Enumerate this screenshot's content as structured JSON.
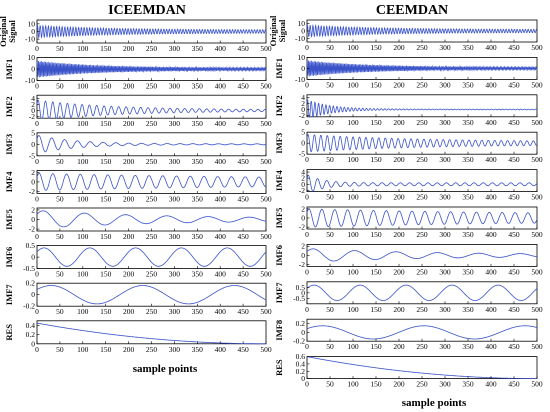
{
  "chart_data": [
    {
      "type": "line",
      "title": "ICEEMDAN",
      "xlabel": "sample points",
      "x_range": [
        0,
        500
      ],
      "x_ticks": [
        0,
        50,
        100,
        150,
        200,
        250,
        300,
        350,
        400,
        450,
        500
      ],
      "grid": false,
      "panels": [
        {
          "name": "Original Signal",
          "ylim": [
            -15,
            15
          ],
          "y_ticks": [
            -10,
            0,
            10
          ],
          "amp": 8,
          "decay": 0.006,
          "period": 6,
          "floor": 0.25,
          "trend": 0
        },
        {
          "name": "IMF1",
          "ylim": [
            -10,
            10
          ],
          "y_ticks": [
            -10,
            0,
            10
          ],
          "amp": 7.5,
          "decay": 0.008,
          "period": 3,
          "floor": 0.15,
          "trend": 0
        },
        {
          "name": "IMF2",
          "ylim": [
            -2.5,
            5
          ],
          "y_ticks": [
            -2,
            0,
            2,
            4
          ],
          "amp": 3.4,
          "decay": 0.006,
          "period": 16,
          "floor": 0.06,
          "trend": 0
        },
        {
          "name": "IMF3",
          "ylim": [
            -5,
            5
          ],
          "y_ticks": [
            -5,
            0,
            5
          ],
          "amp": 4,
          "decay": 0.012,
          "period": 28,
          "floor": 0.05,
          "trend": 0
        },
        {
          "name": "IMF4",
          "ylim": [
            -2.4,
            2.4
          ],
          "y_ticks": [
            -2,
            0,
            2
          ],
          "amp": 1.8,
          "decay": 0.002,
          "period": 30,
          "floor": 0.3,
          "trend": 0
        },
        {
          "name": "IMF5",
          "ylim": [
            -2.4,
            2.4
          ],
          "y_ticks": [
            -2,
            0,
            2
          ],
          "amp": 1.9,
          "decay": 0.004,
          "period": 90,
          "floor": 0.12,
          "trend": 0
        },
        {
          "name": "IMF6",
          "ylim": [
            -0.5,
            0.5
          ],
          "y_ticks": [
            -0.5,
            0,
            0.5
          ],
          "amp": 0.4,
          "decay": 0,
          "period": 100,
          "floor": 1,
          "trend": 0
        },
        {
          "name": "IMF7",
          "ylim": [
            -0.2,
            0.2
          ],
          "y_ticks": [
            -0.2,
            0,
            0.2
          ],
          "amp": 0.16,
          "decay": 0,
          "period": 200,
          "floor": 1,
          "trend": 0
        },
        {
          "name": "RES",
          "ylim": [
            0,
            0.5
          ],
          "y_ticks": [
            0,
            0.2,
            0.4
          ],
          "amp": 0,
          "decay": 0,
          "period": 100,
          "floor": 0,
          "trend": 0.45
        }
      ]
    },
    {
      "type": "line",
      "title": "CEEMDAN",
      "xlabel": "sample points",
      "x_range": [
        0,
        500
      ],
      "x_ticks": [
        0,
        50,
        100,
        150,
        200,
        250,
        300,
        350,
        400,
        450,
        500
      ],
      "grid": false,
      "panels": [
        {
          "name": "Original Signal",
          "ylim": [
            -15,
            15
          ],
          "y_ticks": [
            -10,
            0,
            10
          ],
          "amp": 8,
          "decay": 0.006,
          "period": 6,
          "floor": 0.25,
          "trend": 0
        },
        {
          "name": "IMF1",
          "ylim": [
            -10,
            10
          ],
          "y_ticks": [
            -10,
            0,
            10
          ],
          "amp": 7.5,
          "decay": 0.008,
          "period": 3,
          "floor": 0.15,
          "trend": 0
        },
        {
          "name": "IMF2",
          "ylim": [
            -2.5,
            5
          ],
          "y_ticks": [
            -2,
            0,
            2,
            4
          ],
          "amp": 3.4,
          "decay": 0.02,
          "period": 8,
          "floor": 0.04,
          "trend": 0
        },
        {
          "name": "IMF3",
          "ylim": [
            -5,
            5
          ],
          "y_ticks": [
            -5,
            0,
            5
          ],
          "amp": 4,
          "decay": 0.004,
          "period": 14,
          "floor": 0.15,
          "trend": 0
        },
        {
          "name": "IMF4",
          "ylim": [
            -2.4,
            4.8
          ],
          "y_ticks": [
            -2,
            0,
            2,
            4
          ],
          "amp": 3.2,
          "decay": 0.03,
          "period": 20,
          "floor": 0.15,
          "trend": 0
        },
        {
          "name": "IMF5",
          "ylim": [
            -2.4,
            2.4
          ],
          "y_ticks": [
            -2,
            0,
            2
          ],
          "amp": 2,
          "decay": 0.002,
          "period": 28,
          "floor": 0.3,
          "trend": 0
        },
        {
          "name": "IMF6",
          "ylim": [
            -2.4,
            2.4
          ],
          "y_ticks": [
            -2,
            0,
            2
          ],
          "amp": 1.5,
          "decay": 0.004,
          "period": 90,
          "floor": 0.12,
          "trend": 0
        },
        {
          "name": "IMF7",
          "ylim": [
            -1,
            1
          ],
          "y_ticks": [
            -0.5,
            0,
            0.5
          ],
          "amp": 0.7,
          "decay": 0,
          "period": 100,
          "floor": 1,
          "trend": 0
        },
        {
          "name": "IMF8",
          "ylim": [
            -0.2,
            0.3
          ],
          "y_ticks": [
            -0.2,
            0,
            0.2
          ],
          "amp": 0.15,
          "decay": 0,
          "period": 220,
          "floor": 1,
          "trend": 0
        },
        {
          "name": "RES",
          "ylim": [
            0,
            0.6
          ],
          "y_ticks": [
            0,
            0.2,
            0.4,
            0.6
          ],
          "amp": 0,
          "decay": 0,
          "period": 100,
          "floor": 0,
          "trend": 0.6
        }
      ]
    }
  ]
}
